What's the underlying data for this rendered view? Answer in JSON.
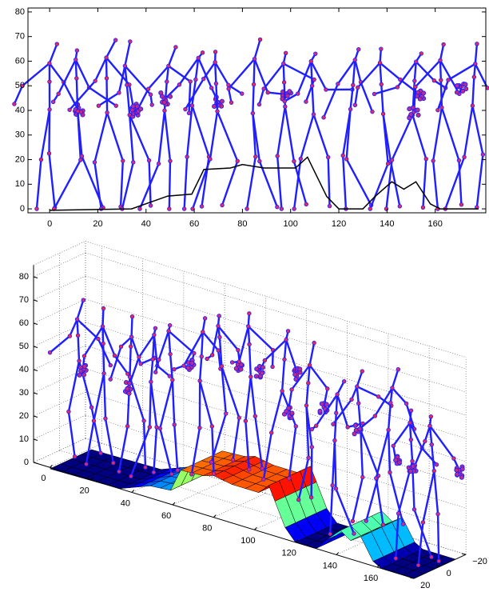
{
  "chart_data": [
    {
      "type": "line",
      "xlim": [
        -9,
        181
      ],
      "ylim": [
        -1.6,
        81.6
      ],
      "xticks": [
        0,
        20,
        40,
        60,
        80,
        100,
        120,
        140,
        160
      ],
      "yticks": [
        0,
        10,
        20,
        30,
        40,
        50,
        60,
        70,
        80
      ],
      "series": [
        {
          "color": "#000000",
          "x": [
            0,
            34,
            49,
            59,
            64,
            75,
            80,
            89,
            102,
            107,
            110,
            115,
            120,
            130,
            135,
            142,
            147,
            152,
            158,
            162,
            178
          ],
          "values": [
            -0.6,
            0,
            5.2,
            6,
            16,
            16.6,
            18,
            16.6,
            16.6,
            21,
            15,
            5,
            0,
            0,
            5,
            11,
            8,
            11,
            2,
            0,
            0
          ]
        }
      ]
    },
    {
      "type": "surface",
      "xlim": [
        -8,
        178
      ],
      "ylim": [
        -20,
        20
      ],
      "zlim": [
        0,
        85
      ],
      "xticks": [
        0,
        20,
        40,
        60,
        80,
        100,
        120,
        140,
        160
      ],
      "yticks": [
        {
          "value": -20,
          "label": "−20"
        },
        0,
        20
      ],
      "zticks": [
        0,
        10,
        20,
        30,
        40,
        50,
        60,
        70,
        80
      ]
    }
  ]
}
